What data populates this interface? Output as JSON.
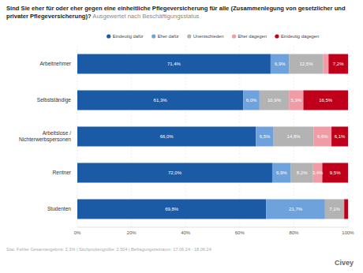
{
  "chart_data": {
    "type": "bar",
    "orientation": "horizontal",
    "stacked": true,
    "data_labels": true,
    "grid": true,
    "legend": "top",
    "title": "Sind Sie eher für oder eher gegen eine einheitliche Pflegeversicherung für alle (Zusammenlegung von gesetzlicher und privater Pflegeversicherung)?",
    "subtitle": "Ausgewertet nach Beschäftigungsstatus",
    "annotations": [
      "Stat. Fehler Gesamtergebnis: 3,3% | Stichprobengröße: 2.504 | Befragungszeitraum: 17.06.24 - 18.06.24",
      "Civey"
    ],
    "categories": [
      "Arbeitnehmer",
      "Selbstständige",
      "Arbeitslose / Nichterwerbspersonen",
      "Rentner",
      "Studenten"
    ],
    "xlim": [
      0,
      100
    ],
    "xticks": [
      {
        "value": 0,
        "label": "0%"
      },
      {
        "value": 20,
        "label": "20%"
      },
      {
        "value": 40,
        "label": "40%"
      },
      {
        "value": 60,
        "label": "60%"
      },
      {
        "value": 80,
        "label": "80%"
      },
      {
        "value": 100,
        "label": "100%"
      }
    ],
    "series": [
      {
        "name": "Eindeutig dafür",
        "color": "#1b5aa5",
        "values": [
          71.4,
          61.3,
          66.0,
          72.0,
          69.8
        ],
        "value_labels": [
          "71,4%",
          "61,3%",
          "66,0%",
          "72,0%",
          "69,8%"
        ]
      },
      {
        "name": "Eher dafür",
        "color": "#6ea2dc",
        "values": [
          6.9,
          6.0,
          6.5,
          6.9,
          21.7
        ],
        "value_labels": [
          "6,9%",
          "6,0%",
          "6,5%",
          "6,9%",
          "21,7%"
        ]
      },
      {
        "name": "Unentschieden",
        "color": "#b3b3b3",
        "values": [
          12.5,
          10.9,
          14.8,
          8.2,
          7.1
        ],
        "value_labels": [
          "12,5%",
          "10,9%",
          "14,8%",
          "8,2%",
          "7,1%"
        ]
      },
      {
        "name": "Eher dagegen",
        "color": "#f09ca6",
        "values": [
          2.0,
          5.3,
          6.6,
          3.4,
          0
        ],
        "value_labels": [
          null,
          "5,3%",
          "6,6%",
          "3,4%",
          null
        ]
      },
      {
        "name": "Eindeutig dagegen",
        "color": "#c0001a",
        "values": [
          7.2,
          16.5,
          6.1,
          9.5,
          1.4
        ],
        "value_labels": [
          "7,2%",
          "16,5%",
          "6,1%",
          "9,5%",
          null
        ]
      }
    ]
  }
}
